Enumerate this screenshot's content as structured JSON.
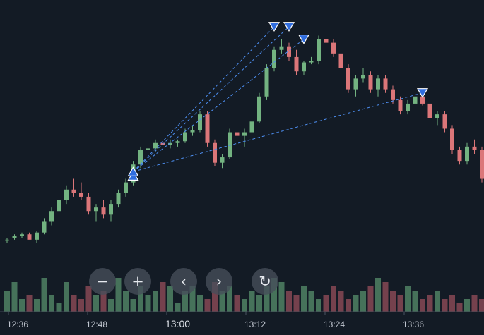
{
  "chart_data": {
    "type": "candlestick",
    "x_tick_labels": [
      "12:36",
      "12:48",
      "13:00",
      "13:12",
      "13:24",
      "13:36"
    ],
    "colors": {
      "background": "#131b25",
      "up": "#73b381",
      "down": "#db7679",
      "marker": "#2f6de0",
      "trendline": "#4d8ef0",
      "volume_up": "#46725a",
      "volume_down": "#75414d"
    },
    "candles": [
      [
        0.4,
        0.5,
        0.2,
        0.4
      ],
      [
        0.5,
        0.7,
        0.4,
        0.6
      ],
      [
        0.6,
        0.8,
        0.5,
        0.7
      ],
      [
        0.7,
        0.8,
        0.5,
        0.4
      ],
      [
        0.4,
        0.9,
        0.2,
        0.8
      ],
      [
        0.8,
        1.6,
        0.7,
        1.4
      ],
      [
        1.4,
        2.2,
        1.2,
        2.0
      ],
      [
        2.0,
        2.8,
        1.8,
        2.6
      ],
      [
        2.6,
        3.4,
        2.4,
        3.2
      ],
      [
        3.2,
        3.8,
        2.8,
        3.0
      ],
      [
        3.0,
        3.6,
        2.6,
        2.8
      ],
      [
        2.8,
        3.0,
        1.8,
        2.0
      ],
      [
        2.0,
        2.4,
        1.4,
        2.2
      ],
      [
        2.2,
        2.6,
        1.6,
        1.8
      ],
      [
        1.8,
        2.6,
        1.4,
        2.4
      ],
      [
        2.4,
        3.2,
        2.2,
        3.0
      ],
      [
        3.0,
        3.8,
        2.8,
        3.6
      ],
      [
        3.6,
        4.8,
        3.4,
        4.6
      ],
      [
        4.6,
        5.6,
        4.4,
        5.4
      ],
      [
        5.4,
        6.0,
        5.2,
        5.5
      ],
      [
        5.5,
        6.0,
        5.3,
        5.8
      ],
      [
        5.8,
        6.0,
        5.5,
        5.7
      ],
      [
        5.7,
        6.0,
        5.5,
        5.8
      ],
      [
        5.8,
        6.0,
        5.6,
        5.9
      ],
      [
        5.9,
        6.6,
        5.8,
        6.4
      ],
      [
        6.4,
        6.8,
        6.2,
        6.5
      ],
      [
        6.5,
        7.6,
        6.4,
        7.4
      ],
      [
        7.4,
        7.6,
        5.6,
        5.8
      ],
      [
        5.8,
        6.0,
        4.5,
        4.7
      ],
      [
        4.7,
        5.2,
        4.4,
        5.0
      ],
      [
        5.0,
        6.6,
        4.9,
        6.4
      ],
      [
        6.4,
        6.8,
        6.0,
        6.2
      ],
      [
        6.2,
        6.6,
        5.6,
        6.4
      ],
      [
        6.4,
        7.2,
        6.2,
        7.0
      ],
      [
        7.0,
        8.6,
        6.9,
        8.4
      ],
      [
        8.4,
        10.2,
        8.2,
        10.0
      ],
      [
        10.0,
        11.2,
        9.8,
        11.0
      ],
      [
        11.0,
        11.6,
        10.8,
        11.2
      ],
      [
        11.2,
        11.4,
        10.4,
        10.6
      ],
      [
        10.6,
        11.0,
        9.6,
        9.8
      ],
      [
        9.8,
        10.4,
        9.6,
        10.3
      ],
      [
        10.3,
        10.6,
        10.2,
        10.4
      ],
      [
        10.4,
        11.8,
        10.2,
        11.6
      ],
      [
        11.6,
        11.9,
        11.3,
        11.4
      ],
      [
        11.4,
        11.6,
        10.6,
        10.8
      ],
      [
        10.8,
        11.0,
        9.8,
        10.0
      ],
      [
        10.0,
        10.2,
        8.6,
        8.8
      ],
      [
        8.8,
        9.6,
        8.4,
        9.4
      ],
      [
        9.4,
        10.0,
        9.2,
        9.6
      ],
      [
        9.6,
        9.8,
        8.6,
        8.8
      ],
      [
        8.8,
        9.6,
        8.4,
        9.4
      ],
      [
        9.4,
        9.6,
        8.6,
        8.8
      ],
      [
        8.8,
        9.0,
        8.0,
        8.2
      ],
      [
        8.2,
        8.4,
        7.4,
        7.6
      ],
      [
        7.6,
        8.2,
        7.4,
        8.0
      ],
      [
        8.0,
        8.6,
        7.8,
        8.4
      ],
      [
        8.4,
        8.7,
        7.9,
        8.0
      ],
      [
        8.0,
        8.2,
        7.0,
        7.2
      ],
      [
        7.2,
        7.6,
        6.8,
        7.4
      ],
      [
        7.4,
        7.6,
        6.4,
        6.6
      ],
      [
        6.6,
        6.8,
        5.2,
        5.4
      ],
      [
        5.4,
        5.6,
        4.6,
        4.8
      ],
      [
        4.8,
        5.8,
        4.6,
        5.6
      ],
      [
        5.6,
        6.0,
        5.2,
        5.4
      ],
      [
        5.4,
        5.6,
        3.6,
        3.8
      ]
    ],
    "volumes": [
      5,
      7,
      3,
      4,
      3,
      8,
      4,
      2,
      7,
      4,
      3,
      6,
      4,
      5,
      3,
      8,
      5,
      3,
      6,
      4,
      5,
      7,
      6,
      2,
      5,
      6,
      4,
      3,
      7,
      5,
      6,
      4,
      3,
      5,
      4,
      6,
      8,
      7,
      5,
      4,
      6,
      5,
      3,
      4,
      6,
      5,
      3,
      4,
      5,
      6,
      8,
      7,
      5,
      4,
      6,
      5,
      3,
      4,
      5,
      3,
      4,
      2,
      3,
      4,
      3
    ],
    "markers": [
      {
        "type": "buy",
        "candle": 17,
        "price": 4.2
      },
      {
        "type": "sell",
        "candle": 36,
        "price": 12.3
      },
      {
        "type": "sell",
        "candle": 38,
        "price": 12.3
      },
      {
        "type": "sell",
        "candle": 40,
        "price": 11.6
      },
      {
        "type": "sell",
        "candle": 56,
        "price": 8.6
      }
    ]
  },
  "controls": [
    {
      "name": "zoom-out-button",
      "icon": "minus-icon",
      "glyph": "−"
    },
    {
      "name": "zoom-in-button",
      "icon": "plus-icon",
      "glyph": "+"
    },
    {
      "name": "scroll-left-button",
      "icon": "chevron-left-icon",
      "glyph": "‹"
    },
    {
      "name": "scroll-right-button",
      "icon": "chevron-right-icon",
      "glyph": "›"
    },
    {
      "name": "reset-button",
      "icon": "reset-icon",
      "glyph": "↻"
    }
  ]
}
